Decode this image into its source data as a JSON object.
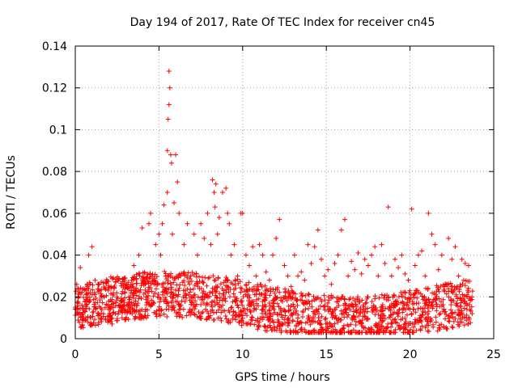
{
  "chart_data": {
    "type": "scatter",
    "title": "Day 194 of 2017, Rate Of TEC Index for receiver cn45",
    "xlabel": "GPS time / hours",
    "ylabel": "ROTI / TECUs",
    "xlim": [
      0,
      25
    ],
    "ylim": [
      0,
      0.14
    ],
    "xticks": [
      0,
      5,
      10,
      15,
      20,
      25
    ],
    "xtick_labels": [
      "0",
      "5",
      "10",
      "15",
      "20",
      "25"
    ],
    "yticks": [
      0,
      0.02,
      0.04,
      0.06,
      0.08,
      0.1,
      0.12,
      0.14
    ],
    "ytick_labels": [
      "0",
      "0.02",
      "0.04",
      "0.06",
      "0.08",
      "0.1",
      "0.12",
      "0.14"
    ],
    "grid": true,
    "marker": "plus",
    "series": [
      {
        "name": "ROTI",
        "color": "#ff0000",
        "x": [
          0.05,
          0.1,
          0.2,
          0.3,
          0.4,
          0.5,
          0.6,
          0.8,
          0.9,
          1.0,
          1.2,
          1.4,
          1.6,
          1.8,
          2.0,
          2.2,
          2.4,
          2.6,
          2.8,
          3.0,
          3.2,
          3.4,
          3.5,
          3.6,
          3.8,
          4.0,
          4.2,
          4.4,
          4.5,
          4.6,
          4.8,
          5.0,
          5.1,
          5.2,
          5.3,
          5.4,
          5.5,
          5.5,
          5.55,
          5.6,
          5.6,
          5.65,
          5.7,
          5.75,
          5.8,
          5.9,
          6.0,
          6.1,
          6.2,
          6.3,
          6.5,
          6.7,
          6.9,
          7.1,
          7.3,
          7.5,
          7.7,
          7.9,
          8.1,
          8.2,
          8.3,
          8.35,
          8.4,
          8.5,
          8.6,
          8.8,
          9.0,
          9.1,
          9.2,
          9.3,
          9.5,
          9.7,
          9.9,
          10.0,
          10.2,
          10.4,
          10.6,
          10.8,
          11.0,
          11.2,
          11.4,
          11.6,
          11.8,
          12.0,
          12.2,
          12.3,
          12.5,
          12.7,
          12.9,
          13.1,
          13.3,
          13.5,
          13.7,
          13.9,
          14.1,
          14.3,
          14.5,
          14.7,
          14.9,
          15.1,
          15.3,
          15.5,
          15.7,
          15.9,
          16.1,
          16.3,
          16.5,
          16.7,
          16.9,
          17.1,
          17.3,
          17.5,
          17.7,
          17.9,
          18.1,
          18.3,
          18.5,
          18.7,
          18.9,
          19.1,
          19.3,
          19.5,
          19.7,
          19.9,
          20.1,
          20.3,
          20.5,
          20.7,
          20.9,
          21.1,
          21.3,
          21.5,
          21.7,
          21.9,
          22.1,
          22.3,
          22.5,
          22.7,
          22.9,
          23.1,
          23.3,
          23.5,
          23.7
        ],
        "y": [
          0.014,
          0.012,
          0.02,
          0.034,
          0.016,
          0.01,
          0.018,
          0.04,
          0.022,
          0.044,
          0.015,
          0.012,
          0.02,
          0.009,
          0.018,
          0.007,
          0.012,
          0.016,
          0.01,
          0.014,
          0.02,
          0.012,
          0.035,
          0.018,
          0.04,
          0.053,
          0.022,
          0.055,
          0.06,
          0.03,
          0.045,
          0.05,
          0.04,
          0.055,
          0.064,
          0.03,
          0.07,
          0.09,
          0.105,
          0.128,
          0.112,
          0.12,
          0.088,
          0.084,
          0.05,
          0.065,
          0.088,
          0.075,
          0.06,
          0.03,
          0.045,
          0.055,
          0.03,
          0.05,
          0.04,
          0.055,
          0.048,
          0.06,
          0.045,
          0.076,
          0.07,
          0.063,
          0.074,
          0.05,
          0.058,
          0.07,
          0.072,
          0.06,
          0.055,
          0.04,
          0.045,
          0.03,
          0.06,
          0.06,
          0.04,
          0.035,
          0.044,
          0.03,
          0.045,
          0.04,
          0.032,
          0.028,
          0.04,
          0.048,
          0.057,
          0.003,
          0.035,
          0.03,
          0.025,
          0.04,
          0.03,
          0.032,
          0.028,
          0.045,
          0.036,
          0.044,
          0.052,
          0.038,
          0.03,
          0.033,
          0.026,
          0.036,
          0.04,
          0.052,
          0.057,
          0.03,
          0.037,
          0.033,
          0.041,
          0.031,
          0.038,
          0.035,
          0.04,
          0.044,
          0.03,
          0.045,
          0.036,
          0.063,
          0.03,
          0.038,
          0.034,
          0.04,
          0.031,
          0.028,
          0.062,
          0.035,
          0.04,
          0.042,
          0.03,
          0.06,
          0.05,
          0.045,
          0.033,
          0.04,
          0.026,
          0.048,
          0.038,
          0.044,
          0.03,
          0.038,
          0.036,
          0.035,
          0.02
        ]
      }
    ]
  }
}
